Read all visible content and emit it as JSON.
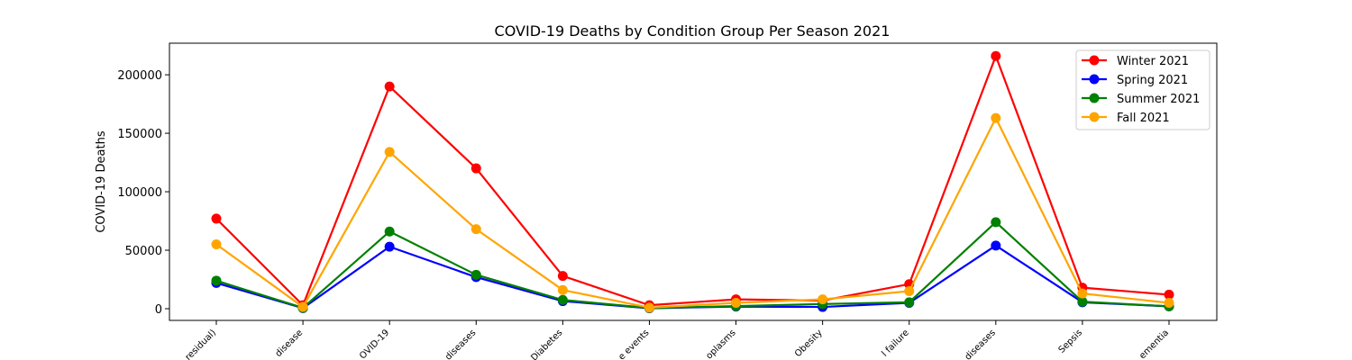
{
  "chart_data": {
    "type": "line",
    "title": "COVID-19 Deaths by Condition Group Per Season 2021",
    "xlabel": "",
    "ylabel": "COVID-19 Deaths",
    "ylim": [
      -10000,
      227000
    ],
    "yticks": [
      0,
      50000,
      100000,
      150000,
      200000
    ],
    "grid": false,
    "legend_position": "top-right",
    "categories": [
      "residual)",
      "disease",
      "OVID-19",
      "diseases",
      "Diabetes",
      "e events",
      "oplasms",
      "Obesity",
      "l failure",
      "diseases",
      "Sepsis",
      "ementia"
    ],
    "series": [
      {
        "name": "Winter 2021",
        "color": "#ff0000",
        "values": [
          77000,
          3000,
          190000,
          120000,
          28000,
          3000,
          8000,
          7000,
          21000,
          216000,
          18000,
          12000
        ]
      },
      {
        "name": "Spring 2021",
        "color": "#0000ff",
        "values": [
          22000,
          500,
          53000,
          27000,
          6500,
          400,
          1800,
          1500,
          5000,
          54000,
          5500,
          2000
        ]
      },
      {
        "name": "Summer 2021",
        "color": "#008000",
        "values": [
          24000,
          700,
          66000,
          29000,
          7500,
          600,
          2200,
          4000,
          5500,
          74000,
          6000,
          2000
        ]
      },
      {
        "name": "Fall 2021",
        "color": "#ffa500",
        "values": [
          55000,
          1500,
          134000,
          68000,
          16000,
          900,
          5000,
          8000,
          15000,
          163000,
          13000,
          5000
        ]
      }
    ]
  }
}
